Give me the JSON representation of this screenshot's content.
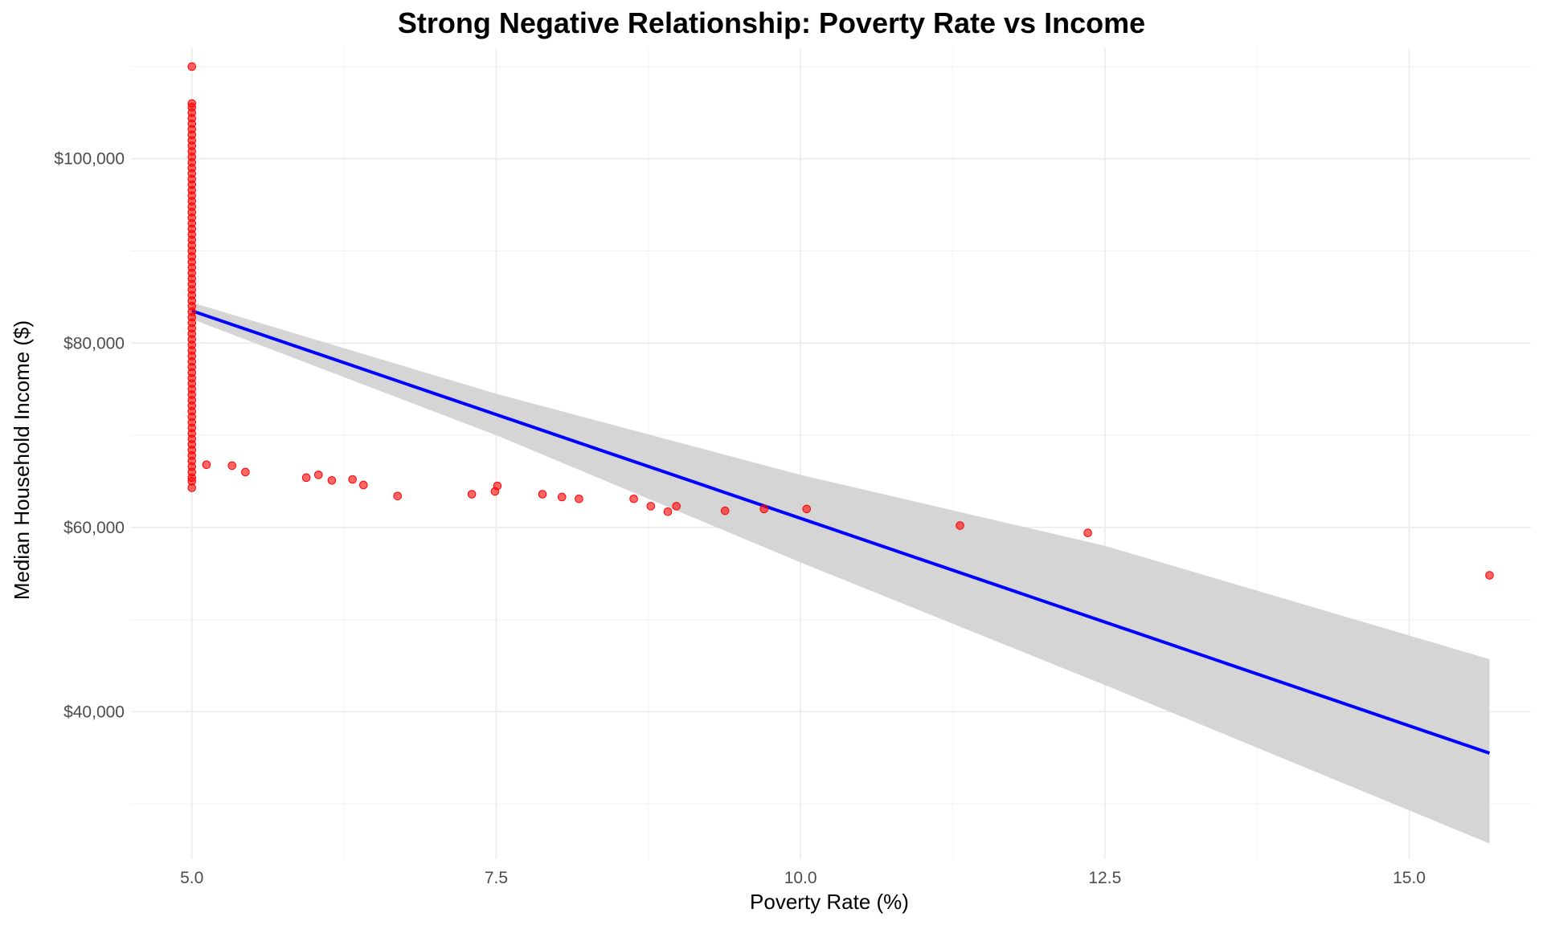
{
  "chart_data": {
    "type": "scatter",
    "title": "Strong Negative Relationship: Poverty Rate vs Income",
    "xlabel": "Poverty Rate (%)",
    "ylabel": "Median Household Income ($)",
    "xlim": [
      4.5,
      16.0
    ],
    "ylim": [
      24000,
      112000
    ],
    "x_ticks": [
      5.0,
      7.5,
      10.0,
      12.5,
      15.0
    ],
    "x_tick_labels": [
      "5.0",
      "7.5",
      "10.0",
      "12.5",
      "15.0"
    ],
    "y_ticks": [
      40000,
      60000,
      80000,
      100000
    ],
    "y_tick_labels": [
      "$40,000",
      "$60,000",
      "$80,000",
      "$100,000"
    ],
    "grid": true,
    "legend": "none",
    "point_color": "#FF0000",
    "line_color": "#0000FF",
    "ribbon_color": "#D3D3D3",
    "series": [
      {
        "kind": "points",
        "points": [
          [
            5.0,
            110000
          ],
          [
            5.0,
            106000
          ],
          [
            5.0,
            105600
          ],
          [
            5.0,
            105000
          ],
          [
            5.0,
            104400
          ],
          [
            5.0,
            103800
          ],
          [
            5.0,
            103200
          ],
          [
            5.0,
            102600
          ],
          [
            5.0,
            102000
          ],
          [
            5.0,
            101400
          ],
          [
            5.0,
            100800
          ],
          [
            5.0,
            100200
          ],
          [
            5.0,
            99600
          ],
          [
            5.0,
            99000
          ],
          [
            5.0,
            98400
          ],
          [
            5.0,
            97800
          ],
          [
            5.0,
            97200
          ],
          [
            5.0,
            96600
          ],
          [
            5.0,
            96000
          ],
          [
            5.0,
            95400
          ],
          [
            5.0,
            94800
          ],
          [
            5.0,
            94200
          ],
          [
            5.0,
            93600
          ],
          [
            5.0,
            93000
          ],
          [
            5.0,
            92400
          ],
          [
            5.0,
            91800
          ],
          [
            5.0,
            91200
          ],
          [
            5.0,
            90600
          ],
          [
            5.0,
            90000
          ],
          [
            5.0,
            89400
          ],
          [
            5.0,
            88800
          ],
          [
            5.0,
            88200
          ],
          [
            5.0,
            87600
          ],
          [
            5.0,
            87000
          ],
          [
            5.0,
            86400
          ],
          [
            5.0,
            85800
          ],
          [
            5.0,
            85200
          ],
          [
            5.0,
            84600
          ],
          [
            5.0,
            84000
          ],
          [
            5.0,
            83400
          ],
          [
            5.0,
            82800
          ],
          [
            5.0,
            82200
          ],
          [
            5.0,
            81600
          ],
          [
            5.0,
            81000
          ],
          [
            5.0,
            80400
          ],
          [
            5.0,
            79800
          ],
          [
            5.0,
            79200
          ],
          [
            5.0,
            78600
          ],
          [
            5.0,
            78000
          ],
          [
            5.0,
            77400
          ],
          [
            5.0,
            76800
          ],
          [
            5.0,
            76200
          ],
          [
            5.0,
            75600
          ],
          [
            5.0,
            75000
          ],
          [
            5.0,
            74400
          ],
          [
            5.0,
            73800
          ],
          [
            5.0,
            73200
          ],
          [
            5.0,
            72600
          ],
          [
            5.0,
            72000
          ],
          [
            5.0,
            71400
          ],
          [
            5.0,
            70800
          ],
          [
            5.0,
            70200
          ],
          [
            5.0,
            69600
          ],
          [
            5.0,
            69000
          ],
          [
            5.0,
            68400
          ],
          [
            5.0,
            67800
          ],
          [
            5.0,
            67200
          ],
          [
            5.0,
            66600
          ],
          [
            5.0,
            66000
          ],
          [
            5.0,
            65400
          ],
          [
            5.0,
            65000
          ],
          [
            5.0,
            64300
          ],
          [
            5.12,
            66800
          ],
          [
            5.33,
            66700
          ],
          [
            5.44,
            66000
          ],
          [
            5.94,
            65400
          ],
          [
            6.04,
            65700
          ],
          [
            6.15,
            65100
          ],
          [
            6.32,
            65200
          ],
          [
            6.41,
            64600
          ],
          [
            6.69,
            63400
          ],
          [
            7.3,
            63600
          ],
          [
            7.49,
            63900
          ],
          [
            7.51,
            64500
          ],
          [
            7.88,
            63600
          ],
          [
            8.04,
            63300
          ],
          [
            8.18,
            63100
          ],
          [
            8.63,
            63100
          ],
          [
            8.77,
            62300
          ],
          [
            8.91,
            61700
          ],
          [
            8.98,
            62300
          ],
          [
            9.38,
            61800
          ],
          [
            9.7,
            62000
          ],
          [
            10.05,
            62000
          ],
          [
            11.31,
            60200
          ],
          [
            12.36,
            59400
          ],
          [
            15.66,
            54800
          ]
        ]
      },
      {
        "kind": "regression_line",
        "x": [
          5.0,
          15.66
        ],
        "y": [
          83500,
          35500
        ]
      },
      {
        "kind": "confidence_band",
        "x": [
          5.0,
          7.5,
          10.0,
          12.5,
          15.66
        ],
        "lower": [
          82600,
          70000,
          56200,
          42900,
          25700
        ],
        "upper": [
          84400,
          74500,
          65700,
          58000,
          45700
        ]
      }
    ]
  }
}
